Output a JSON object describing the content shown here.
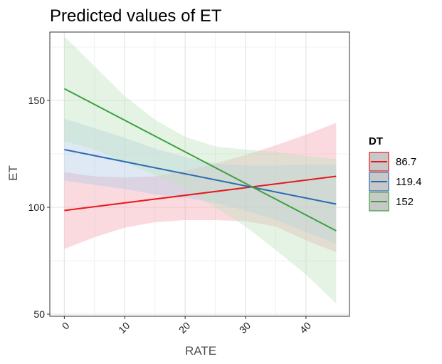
{
  "chart_data": {
    "type": "line",
    "title": "Predicted values of ET",
    "xlabel": "RATE",
    "ylabel": "ET",
    "xlim": [
      -2.4,
      47.2
    ],
    "ylim": [
      49,
      182
    ],
    "x_ticks": [
      0,
      10,
      20,
      30,
      40
    ],
    "y_ticks": [
      50,
      100,
      150
    ],
    "grid": true,
    "legend_title": "DT",
    "legend_position": "right",
    "series": [
      {
        "name": "86.7",
        "color": "#e31a1c",
        "fill": "#f4a6b0",
        "x": [
          0,
          45
        ],
        "y": [
          98.5,
          114.5
        ],
        "ci_x": [
          0,
          5,
          10,
          15,
          20,
          25,
          30,
          35,
          40,
          45
        ],
        "ci_lower": [
          80.5,
          86,
          90.5,
          93,
          94,
          94,
          93.5,
          91,
          84.5,
          79
        ],
        "ci_upper": [
          116.5,
          114.5,
          114,
          114.5,
          117,
          120.5,
          124.5,
          129,
          134,
          139.5
        ]
      },
      {
        "name": "119.4",
        "color": "#2b6cb0",
        "fill": "#b3cbe8",
        "x": [
          0,
          45
        ],
        "y": [
          127,
          101.5
        ],
        "ci_x": [
          0,
          5,
          10,
          15,
          20,
          25,
          30,
          35,
          40,
          45
        ],
        "ci_lower": [
          112.5,
          110.5,
          108.5,
          106,
          104.5,
          102,
          98.5,
          94,
          88.5,
          83
        ],
        "ci_upper": [
          141.5,
          137,
          132.5,
          127.5,
          123.5,
          120.5,
          119.5,
          119.5,
          120,
          120
        ]
      },
      {
        "name": "152",
        "color": "#3fa03f",
        "fill": "#bfe3bf",
        "x": [
          0,
          45
        ],
        "y": [
          155.5,
          89
        ],
        "ci_x": [
          0,
          5,
          10,
          15,
          20,
          25,
          30,
          35,
          40,
          45
        ],
        "ci_lower": [
          131,
          127,
          121,
          115,
          108.5,
          100,
          91,
          80,
          68.5,
          55
        ],
        "ci_upper": [
          180,
          166,
          152,
          141,
          133,
          128.5,
          127,
          126,
          124,
          122.5
        ]
      }
    ]
  }
}
